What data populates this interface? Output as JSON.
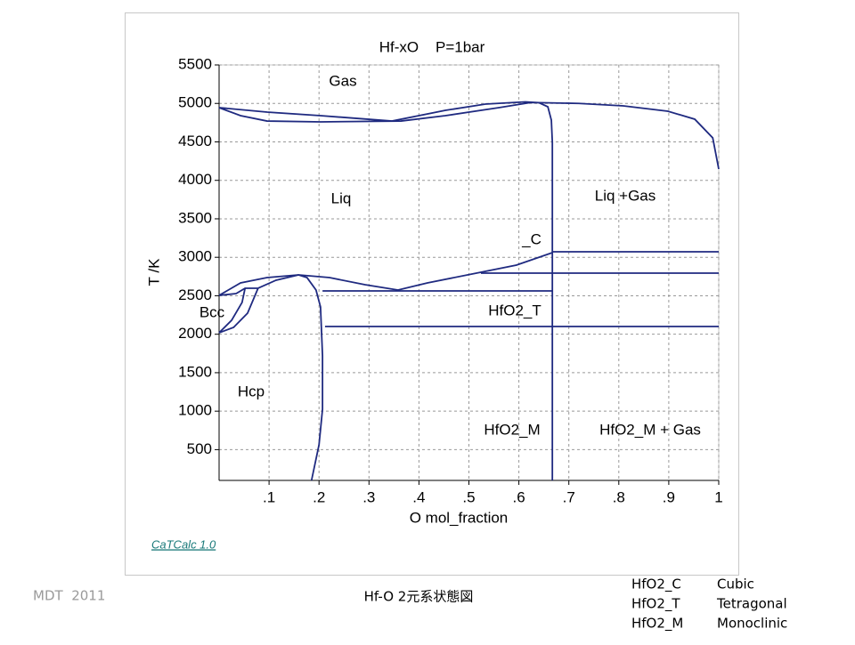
{
  "chart_data": {
    "type": "line",
    "title": "Hf-xO    P=1bar",
    "xlabel": "O mol_fraction",
    "ylabel": "T /K",
    "color": "#1f2a80",
    "grid": true,
    "xlim": [
      0,
      1
    ],
    "ylim": [
      100,
      5500
    ],
    "xticks": [
      {
        "value": 0.1,
        "label": ".1"
      },
      {
        "value": 0.2,
        "label": ".2"
      },
      {
        "value": 0.3,
        "label": ".3"
      },
      {
        "value": 0.4,
        "label": ".4"
      },
      {
        "value": 0.5,
        "label": ".5"
      },
      {
        "value": 0.6,
        "label": ".6"
      },
      {
        "value": 0.7,
        "label": ".7"
      },
      {
        "value": 0.8,
        "label": ".8"
      },
      {
        "value": 0.9,
        "label": ".9"
      },
      1
    ],
    "yticks": [
      500,
      1000,
      1500,
      2000,
      2500,
      3000,
      3500,
      4000,
      4500,
      5000,
      5500
    ],
    "annotations": [
      "Gas",
      "Liq",
      "Liq +Gas",
      "_C",
      "HfO2_T",
      "Bcc",
      "Hcp",
      "HfO2_M",
      "HfO2_M + Gas"
    ],
    "series": [
      {
        "x": [
          0,
          0.096,
          0.203,
          0.346,
          0.453,
          0.533,
          0.613,
          0.64
        ],
        "values": [
          4945,
          4887,
          4841,
          4771,
          4910,
          4991,
          5020,
          5010
        ]
      },
      {
        "x": [
          0,
          0.043,
          0.096,
          0.203,
          0.364,
          0.453,
          0.56,
          0.622,
          0.64
        ],
        "values": [
          4945,
          4841,
          4771,
          4760,
          4771,
          4841,
          4945,
          5010,
          5010
        ]
      },
      {
        "x": [
          0.64,
          0.72,
          0.809,
          0.898,
          0.952,
          0.988,
          1
        ],
        "values": [
          5010,
          5000,
          4968,
          4899,
          4795,
          4552,
          4147
        ]
      },
      {
        "x": [
          0.64,
          0.658,
          0.665,
          0.667,
          0.667
        ],
        "values": [
          5010,
          4956,
          4783,
          4494,
          100
        ]
      },
      {
        "x": [
          0,
          0.043,
          0.096,
          0.159,
          0.221,
          0.292,
          0.358,
          0.417,
          0.524,
          0.595,
          0.667
        ],
        "values": [
          2505,
          2667,
          2736,
          2771,
          2736,
          2644,
          2575,
          2667,
          2806,
          2898,
          3060
        ]
      },
      {
        "x": [
          0.667,
          1
        ],
        "values": [
          3072,
          3072
        ]
      },
      {
        "x": [
          0.524,
          1
        ],
        "values": [
          2794,
          2794
        ]
      },
      {
        "x": [
          0.207,
          0.667
        ],
        "values": [
          2563,
          2563
        ]
      },
      {
        "x": [
          0.212,
          1
        ],
        "values": [
          2100,
          2100
        ]
      },
      {
        "x": [
          0.159,
          0.176,
          0.194,
          0.203,
          0.207,
          0.207,
          0.2,
          0.185
        ],
        "values": [
          2771,
          2736,
          2575,
          2355,
          1719,
          1025,
          563,
          100
        ]
      },
      {
        "x": [
          0.078,
          0.114,
          0.159
        ],
        "values": [
          2598,
          2702,
          2771
        ]
      },
      {
        "x": [
          0,
          0.034,
          0.052,
          0.078
        ],
        "values": [
          2505,
          2528,
          2598,
          2598
        ]
      },
      {
        "x": [
          0,
          0.029,
          0.057,
          0.078
        ],
        "values": [
          2019,
          2089,
          2274,
          2598
        ]
      },
      {
        "x": [
          0,
          0.025,
          0.046,
          0.052
        ],
        "values": [
          2019,
          2181,
          2413,
          2598
        ]
      }
    ]
  },
  "link": "CaTCalc 1.0",
  "footer": {
    "left": "MDT  2011",
    "center": "Hf-O 2元系状態図",
    "legend": [
      [
        "HfO2_C",
        "Cubic"
      ],
      [
        "HfO2_T",
        "Tetragonal"
      ],
      [
        "HfO2_M",
        "Monoclinic"
      ]
    ]
  }
}
